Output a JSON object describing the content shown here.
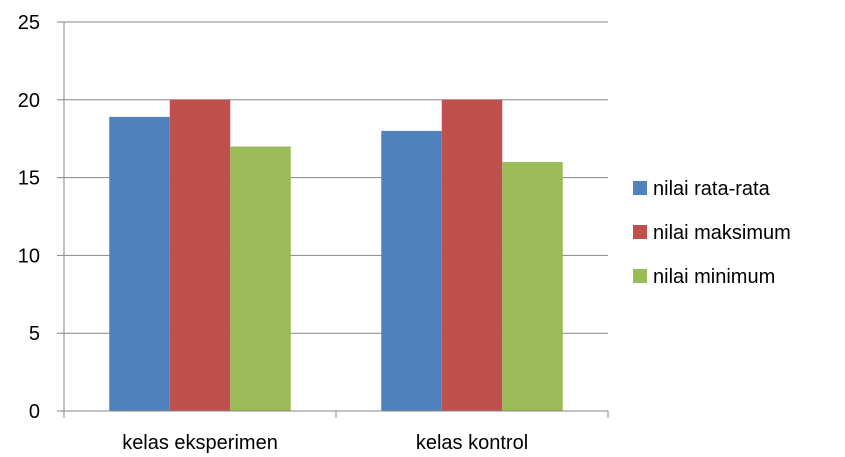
{
  "chart_data": {
    "type": "bar",
    "title": "",
    "xlabel": "",
    "ylabel": "",
    "categories": [
      "kelas eksperimen",
      "kelas kontrol"
    ],
    "series": [
      {
        "name": "nilai rata-rata",
        "values": [
          18.9,
          18
        ],
        "color": "#4F81BD"
      },
      {
        "name": "nilai maksimum",
        "values": [
          20,
          20
        ],
        "color": "#C0504D"
      },
      {
        "name": "nilai minimum",
        "values": [
          17,
          16
        ],
        "color": "#9BBB59"
      }
    ],
    "ylim": [
      0,
      25
    ],
    "yticks": [
      "0",
      "5",
      "10",
      "15",
      "20",
      "25"
    ],
    "grid": true,
    "legend": "right",
    "gridline_color": "#868686"
  }
}
